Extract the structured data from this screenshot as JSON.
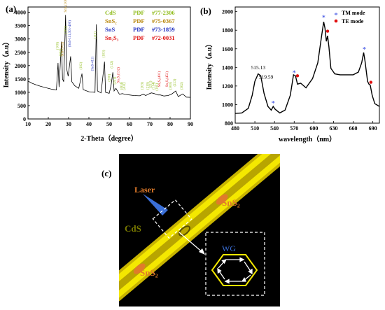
{
  "chart_data": [
    {
      "panel": "(a)",
      "type": "line",
      "xlabel": "2-Theta（degree）",
      "ylabel": "Intensity（a.u）",
      "xlim": [
        10,
        90
      ],
      "ylim": [
        0,
        4200
      ],
      "xticks": [
        10,
        20,
        30,
        40,
        50,
        60,
        70,
        80,
        90
      ],
      "yticks": [
        0,
        500,
        1000,
        1500,
        2000,
        2500,
        3000,
        3500,
        4000
      ],
      "legend": [
        {
          "label": "CdS",
          "pdf_label": "PDF",
          "pdf": "#77-2306",
          "color": "#8fbc1a"
        },
        {
          "label": "SnS₂",
          "pdf_label": "PDF",
          "pdf": "#75-0367",
          "color": "#b8860b"
        },
        {
          "label": "SnS",
          "pdf_label": "PDF",
          "pdf": "#73-1859",
          "color": "#1f2fc0"
        },
        {
          "label": "Sn₂S₃",
          "pdf_label": "PDF",
          "pdf": "#72-0031",
          "color": "#e01010"
        }
      ],
      "series": [
        {
          "values": [
            [
              10,
              1420
            ],
            [
              12,
              1340
            ],
            [
              14,
              1280
            ],
            [
              16,
              1230
            ],
            [
              18,
              1190
            ],
            [
              20,
              1150
            ],
            [
              22,
              1110
            ],
            [
              24,
              1090
            ],
            [
              24.8,
              2100
            ],
            [
              25.3,
              1200
            ],
            [
              26.5,
              2900
            ],
            [
              27.0,
              1500
            ],
            [
              27.6,
              1400
            ],
            [
              28.5,
              3900
            ],
            [
              29.0,
              1900
            ],
            [
              29.8,
              1600
            ],
            [
              31.0,
              2350
            ],
            [
              31.6,
              1400
            ],
            [
              33,
              1250
            ],
            [
              35,
              1150
            ],
            [
              36.6,
              1700
            ],
            [
              37.2,
              1100
            ],
            [
              40,
              1020
            ],
            [
              43,
              1000
            ],
            [
              43.7,
              3550
            ],
            [
              44.2,
              1050
            ],
            [
              46,
              980
            ],
            [
              47.7,
              2150
            ],
            [
              48.2,
              1000
            ],
            [
              50,
              960
            ],
            [
              50.9,
              1250
            ],
            [
              51.8,
              1750
            ],
            [
              52.4,
              1050
            ],
            [
              53.3,
              1150
            ],
            [
              55,
              930
            ],
            [
              56.5,
              950
            ],
            [
              58,
              920
            ],
            [
              60,
              900
            ],
            [
              62,
              880
            ],
            [
              65,
              870
            ],
            [
              66.8,
              930
            ],
            [
              68,
              880
            ],
            [
              69.5,
              940
            ],
            [
              70.8,
              980
            ],
            [
              72.2,
              950
            ],
            [
              74,
              900
            ],
            [
              75.2,
              900
            ],
            [
              77,
              860
            ],
            [
              79,
              880
            ],
            [
              80.7,
              930
            ],
            [
              82.8,
              1050
            ],
            [
              84,
              840
            ],
            [
              86.2,
              940
            ],
            [
              88,
              820
            ],
            [
              90,
              810
            ]
          ]
        }
      ],
      "annotations": [
        {
          "text": "(100)",
          "x": 25.0,
          "y": 2600,
          "color": "#8fbc1a"
        },
        {
          "text": "(002)",
          "x": 26.5,
          "y": 2350,
          "color": "#8fbc1a"
        },
        {
          "text": "SnS₂(002)",
          "x": 27.4,
          "y": 2350,
          "color": "#b8860b"
        },
        {
          "text": "(101)",
          "x": 29.0,
          "y": 3200,
          "color": "#8fbc1a"
        },
        {
          "text": "SnS₂(100)",
          "x": 29.0,
          "y": 4000,
          "color": "#b8860b"
        },
        {
          "text": "(SnS-111,301-400)",
          "x": 31.0,
          "y": 2700,
          "color": "#1f2fc0"
        },
        {
          "text": "(102)",
          "x": 36.6,
          "y": 1850,
          "color": "#8fbc1a"
        },
        {
          "text": "(110)",
          "x": 43.7,
          "y": 3000,
          "color": "#8fbc1a"
        },
        {
          "text": "(SnS-411)",
          "x": 42.2,
          "y": 1800,
          "color": "#1f2fc0"
        },
        {
          "text": "(103)",
          "x": 47.7,
          "y": 2300,
          "color": "#8fbc1a"
        },
        {
          "text": "(200)",
          "x": 50.5,
          "y": 1400,
          "color": "#8fbc1a"
        },
        {
          "text": "(112)",
          "x": 51.8,
          "y": 1900,
          "color": "#8fbc1a"
        },
        {
          "text": "(201)",
          "x": 53.3,
          "y": 1300,
          "color": "#8fbc1a"
        },
        {
          "text": "Sn₂S₃(132)",
          "x": 55.0,
          "y": 1350,
          "color": "#e01010"
        },
        {
          "text": "(004)",
          "x": 56.5,
          "y": 1100,
          "color": "#8fbc1a"
        },
        {
          "text": "(202)",
          "x": 58.0,
          "y": 1080,
          "color": "#8fbc1a"
        },
        {
          "text": "(203)",
          "x": 66.8,
          "y": 1100,
          "color": "#8fbc1a"
        },
        {
          "text": "(210)",
          "x": 69.5,
          "y": 1100,
          "color": "#8fbc1a"
        },
        {
          "text": "(211)",
          "x": 70.8,
          "y": 1150,
          "color": "#8fbc1a"
        },
        {
          "text": "(114)",
          "x": 72.2,
          "y": 1110,
          "color": "#8fbc1a"
        },
        {
          "text": "Sn₂S₃(401)",
          "x": 75.2,
          "y": 1200,
          "color": "#e01010"
        },
        {
          "text": "(105)",
          "x": 74.0,
          "y": 1060,
          "color": "#8fbc1a"
        },
        {
          "text": "(300)",
          "x": 80.7,
          "y": 1100,
          "color": "#8fbc1a"
        },
        {
          "text": "Sn₂S₃(451)",
          "x": 79.0,
          "y": 1200,
          "color": "#e01010"
        },
        {
          "text": "(213)",
          "x": 82.8,
          "y": 1220,
          "color": "#8fbc1a"
        },
        {
          "text": "(302)",
          "x": 86.2,
          "y": 1100,
          "color": "#8fbc1a"
        }
      ]
    },
    {
      "panel": "(b)",
      "type": "line",
      "xlabel": "wavelength（nm）",
      "ylabel": "Intensity（a.u）",
      "xlim": [
        480,
        700
      ],
      "ylim": [
        800,
        2050
      ],
      "xticks": [
        480,
        510,
        540,
        570,
        600,
        630,
        660,
        690
      ],
      "yticks": [
        800,
        1000,
        1200,
        1400,
        1600,
        1800,
        2000
      ],
      "legend": [
        {
          "label": "TM mode",
          "color": "#2a3fe0",
          "marker": "*"
        },
        {
          "label": "TE mode",
          "color": "#e01010",
          "marker": "•"
        }
      ],
      "series": [
        {
          "values": [
            [
              480,
              905
            ],
            [
              490,
              910
            ],
            [
              500,
              960
            ],
            [
              506,
              1100
            ],
            [
              510,
              1250
            ],
            [
              515,
              1330
            ],
            [
              519,
              1310
            ],
            [
              524,
              1120
            ],
            [
              530,
              980
            ],
            [
              535,
              940
            ],
            [
              538,
              980
            ],
            [
              541,
              950
            ],
            [
              548,
              910
            ],
            [
              556,
              940
            ],
            [
              564,
              1100
            ],
            [
              569,
              1320
            ],
            [
              572,
              1310
            ],
            [
              575,
              1220
            ],
            [
              580,
              1230
            ],
            [
              588,
              1180
            ],
            [
              598,
              1280
            ],
            [
              606,
              1450
            ],
            [
              611,
              1700
            ],
            [
              615,
              1890
            ],
            [
              617,
              1820
            ],
            [
              619,
              1680
            ],
            [
              621,
              1740
            ],
            [
              623,
              1620
            ],
            [
              626,
              1390
            ],
            [
              632,
              1330
            ],
            [
              640,
              1320
            ],
            [
              650,
              1320
            ],
            [
              660,
              1320
            ],
            [
              668,
              1350
            ],
            [
              673,
              1450
            ],
            [
              676,
              1560
            ],
            [
              678,
              1470
            ],
            [
              682,
              1250
            ],
            [
              684,
              1220
            ],
            [
              686,
              1210
            ],
            [
              689,
              1100
            ],
            [
              693,
              1010
            ],
            [
              700,
              980
            ]
          ]
        }
      ],
      "markers": [
        {
          "mode": "TM",
          "x": 538,
          "y": 1010
        },
        {
          "mode": "TM",
          "x": 570,
          "y": 1340
        },
        {
          "mode": "TE",
          "x": 575,
          "y": 1310
        },
        {
          "mode": "TM",
          "x": 615,
          "y": 1935
        },
        {
          "mode": "TE",
          "x": 621,
          "y": 1790
        },
        {
          "mode": "TM",
          "x": 677,
          "y": 1590
        },
        {
          "mode": "TE",
          "x": 687,
          "y": 1240
        }
      ],
      "labels": [
        {
          "text": "515.13",
          "x": 515,
          "y": 1380
        },
        {
          "text": "519.59",
          "x": 527,
          "y": 1280
        }
      ]
    }
  ],
  "schematic": {
    "panel": "(c)",
    "laser_label": "Laser",
    "sns2_top": "SnS₂",
    "sns2_bottom": "SnS₂",
    "cds_label": "CdS",
    "wg_label": "WG"
  }
}
